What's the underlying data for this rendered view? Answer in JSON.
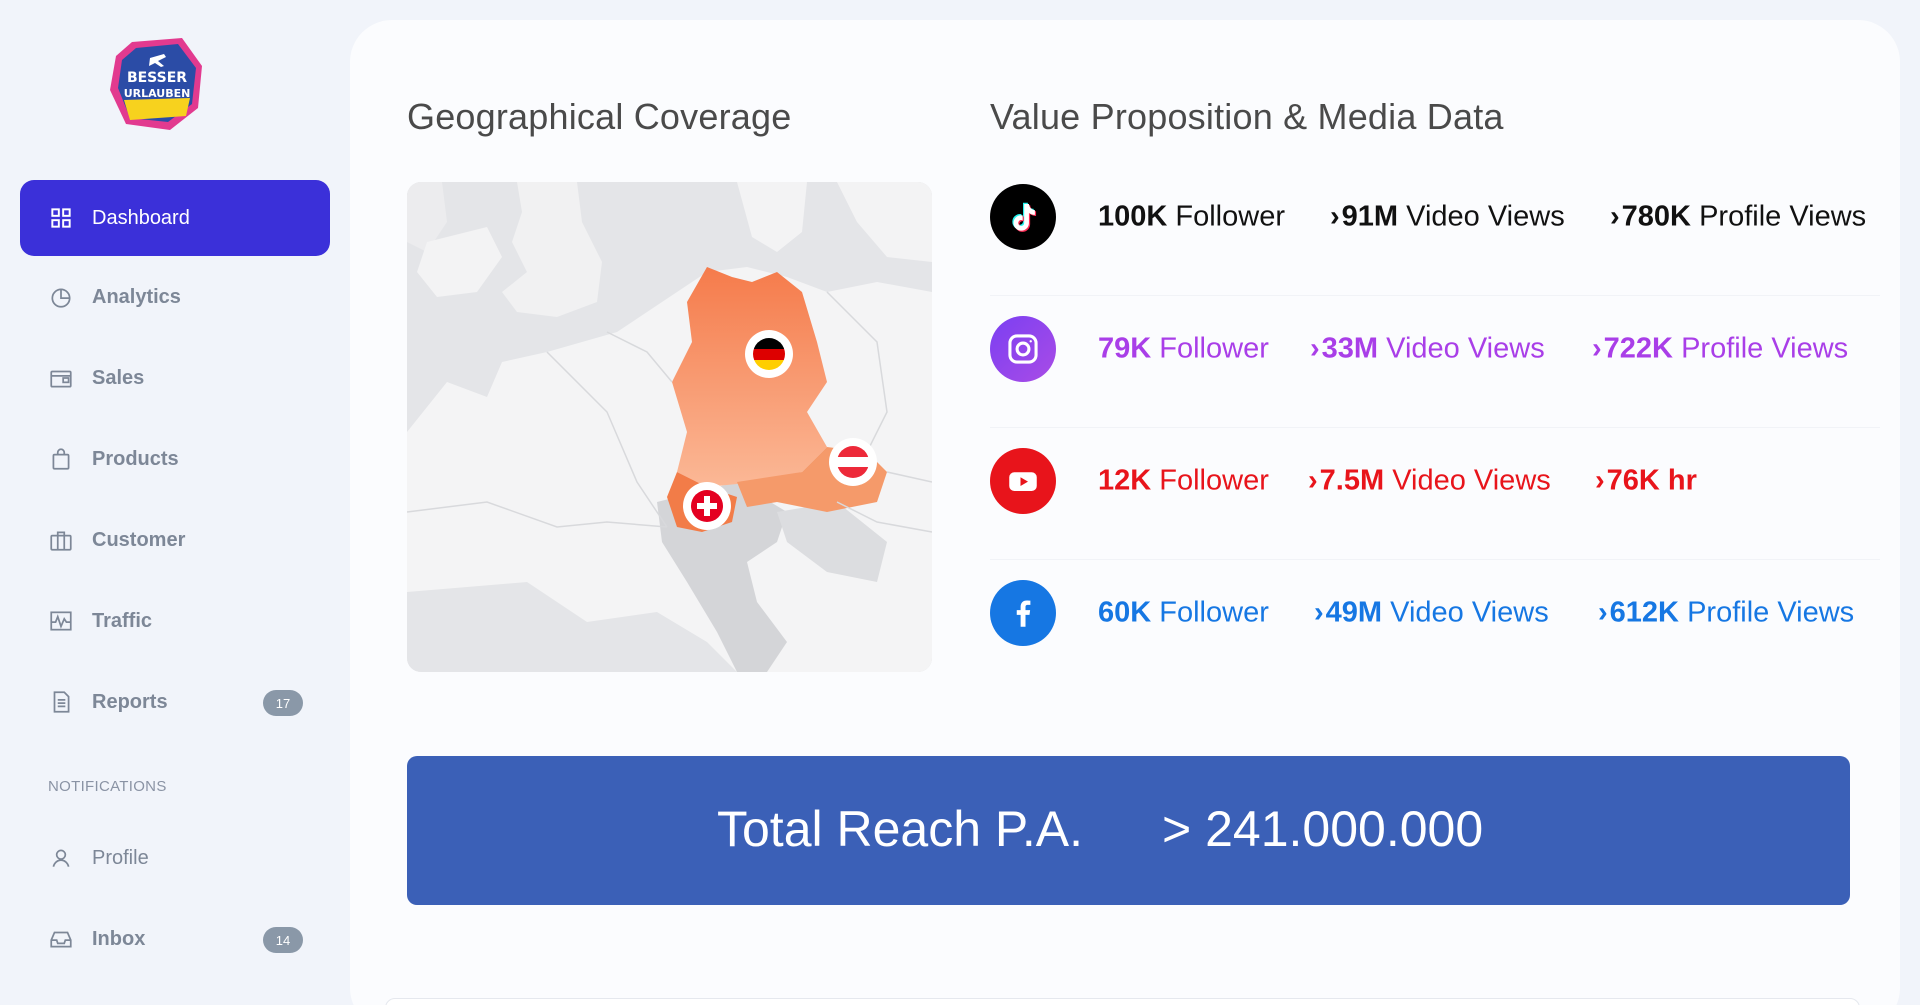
{
  "brand": {
    "logo_line1": "BESSER",
    "logo_line2": "URLAUBEN"
  },
  "sidebar": {
    "items": [
      {
        "label": "Dashboard",
        "icon": "grid-icon"
      },
      {
        "label": "Analytics",
        "icon": "pie-chart-icon"
      },
      {
        "label": "Sales",
        "icon": "wallet-icon"
      },
      {
        "label": "Products",
        "icon": "shopping-bag-icon"
      },
      {
        "label": "Customer",
        "icon": "briefcase-icon"
      },
      {
        "label": "Traffic",
        "icon": "activity-icon"
      },
      {
        "label": "Reports",
        "icon": "document-icon",
        "badge": "17"
      }
    ],
    "section_label": "NOTIFICATIONS",
    "notification_items": [
      {
        "label": "Profile",
        "icon": "user-icon"
      },
      {
        "label": "Inbox",
        "icon": "inbox-icon",
        "badge": "14"
      }
    ],
    "active_color": "#3b30d9"
  },
  "main": {
    "geo_title": "Geographical Coverage",
    "value_title": "Value Proposition & Media Data",
    "countries": [
      "Germany",
      "Austria",
      "Switzerland"
    ],
    "social": [
      {
        "platform": "tiktok",
        "icon": "tiktok-icon",
        "color": "#000000",
        "followers": "100K",
        "followers_label": "Follower",
        "video_views": "91M",
        "video_views_label": "Video Views",
        "profile_views": "780K",
        "profile_views_label": "Profile Views"
      },
      {
        "platform": "instagram",
        "icon": "instagram-icon",
        "color": "#a93ee8",
        "followers": "79K",
        "followers_label": "Follower",
        "video_views": "33M",
        "video_views_label": "Video Views",
        "profile_views": "722K",
        "profile_views_label": "Profile Views"
      },
      {
        "platform": "youtube",
        "icon": "youtube-icon",
        "color": "#e8141b",
        "followers": "12K",
        "followers_label": "Follower",
        "video_views": "7.5M",
        "video_views_label": "Video Views",
        "profile_views": "76K hr",
        "profile_views_label": ""
      },
      {
        "platform": "facebook",
        "icon": "facebook-icon",
        "color": "#1677e3",
        "followers": "60K",
        "followers_label": "Follower",
        "video_views": "49M",
        "video_views_label": "Video Views",
        "profile_views": "612K",
        "profile_views_label": "Profile Views"
      }
    ],
    "total_label": "Total Reach P.A.",
    "total_value": "> 241.000.000",
    "total_color": "#3b60b7"
  }
}
